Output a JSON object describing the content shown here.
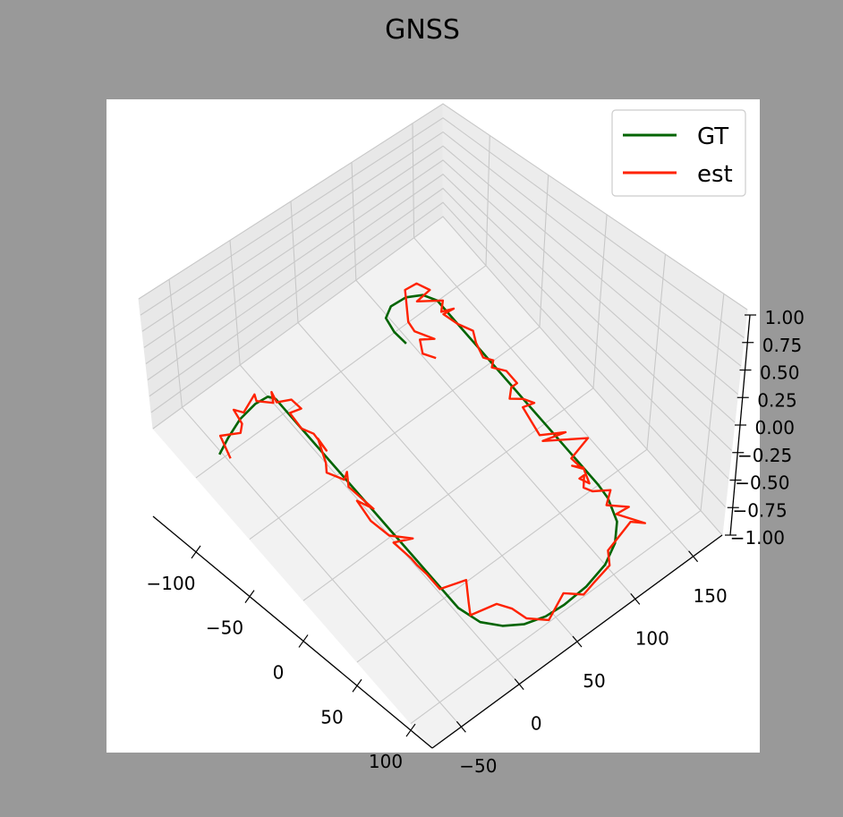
{
  "chart_data": {
    "type": "line",
    "projection": "3d",
    "title": "GNSS",
    "xlabel": "",
    "ylabel": "",
    "zlabel": "",
    "xlim": [
      -140,
      120
    ],
    "ylim": [
      -75,
      175
    ],
    "zlim": [
      -1.0,
      1.0
    ],
    "x_ticks": [
      -100,
      -50,
      0,
      50,
      100
    ],
    "x_tick_labels": [
      "−100",
      "−50",
      "0",
      "50",
      "100"
    ],
    "y_ticks": [
      -50,
      0,
      50,
      100,
      150
    ],
    "y_tick_labels": [
      "−50",
      "0",
      "50",
      "100",
      "150"
    ],
    "z_ticks": [
      1.0,
      0.75,
      0.5,
      0.25,
      0.0,
      -0.25,
      -0.5,
      -0.75,
      -1.0
    ],
    "z_tick_labels": [
      "1.00",
      "0.75",
      "0.50",
      "0.25",
      "0.00",
      "−0.25",
      "−0.50",
      "−0.75",
      "−1.00"
    ],
    "grid": true,
    "legend_position": "top-right",
    "series": [
      {
        "name": "GT",
        "color": "#006400",
        "x": [
          -103,
          -108,
          -113,
          -115,
          -114,
          -110,
          -100,
          -80,
          -60,
          -40,
          -20,
          0,
          20,
          40,
          60,
          75,
          85,
          92,
          96,
          97,
          96,
          92,
          85,
          75,
          60,
          50,
          40,
          30,
          20,
          10,
          0,
          -10,
          -20,
          -30,
          -40,
          -50,
          -60,
          -70,
          -80,
          -90,
          -100,
          -108,
          -113,
          -114,
          -110,
          -100,
          -90
        ],
        "y": [
          -52,
          -40,
          -25,
          -10,
          0,
          3,
          3,
          3,
          3,
          3,
          3,
          3,
          3,
          3,
          3,
          8,
          18,
          30,
          45,
          60,
          80,
          100,
          115,
          126,
          132,
          133,
          133,
          133,
          133,
          133,
          133,
          133,
          133,
          133,
          133,
          133,
          133,
          133,
          133,
          133,
          133,
          128,
          118,
          106,
          98,
          96,
          97
        ],
        "z": [
          0,
          0,
          0,
          0,
          0,
          0,
          0,
          0,
          0,
          0,
          0,
          0,
          0,
          0,
          0,
          0,
          0,
          0,
          0,
          0,
          0,
          0,
          0,
          0,
          0,
          0,
          0,
          0,
          0,
          0,
          0,
          0,
          0,
          0,
          0,
          0,
          0,
          0,
          0,
          0,
          0,
          0,
          0,
          0,
          0,
          0,
          0
        ]
      },
      {
        "name": "est",
        "color": "#ff2200",
        "x": [
          -97,
          -112,
          -106,
          -110,
          -120,
          -115,
          -120,
          -116,
          -109,
          -115,
          -108,
          -104,
          -96,
          -98,
          -86,
          -79,
          -66,
          -75,
          -60,
          -55,
          -45,
          -48,
          -40,
          -20,
          -30,
          -15,
          -1,
          9,
          4,
          18,
          24,
          32,
          44,
          49,
          61,
          68,
          72,
          80,
          90,
          99,
          91,
          99,
          97,
          94,
          86,
          80,
          86,
          71,
          72,
          63,
          57,
          51,
          46,
          41,
          40,
          40,
          46,
          36,
          31,
          36,
          27,
          23,
          8,
          12,
          4,
          -6,
          -16,
          -14,
          -20,
          -25,
          -30,
          -30,
          -40,
          -47,
          -50,
          -55,
          -65,
          -72,
          -81,
          -91,
          -90,
          -93,
          -98,
          -107,
          -108,
          -116,
          -117,
          -113,
          -100,
          -93,
          -82,
          -87,
          -79,
          -72
        ],
        "y": [
          -48,
          -43,
          -31,
          -26,
          -24,
          -20,
          -6,
          -8,
          0,
          4,
          2,
          11,
          12,
          4,
          3,
          7,
          6,
          7,
          0,
          -4,
          2,
          7,
          1,
          4,
          -1,
          -3,
          0,
          11,
          -1,
          1,
          1,
          2,
          2,
          20,
          11,
          6,
          25,
          31,
          34,
          45,
          65,
          75,
          85,
          102,
          108,
          133,
          140,
          129,
          139,
          128,
          137,
          127,
          124,
          129,
          130,
          126,
          129,
          133,
          128,
          132,
          131,
          149,
          124,
          140,
          125,
          127,
          129,
          137,
          133,
          126,
          132,
          137,
          137,
          131,
          135,
          131,
          134,
          138,
          133,
          130,
          138,
          130,
          136,
          122,
          134,
          130,
          121,
          118,
          108,
          107,
          114,
          106,
          101,
          106
        ],
        "z": [
          0,
          0,
          0,
          0,
          0,
          0,
          0,
          0,
          0,
          0,
          0,
          0,
          0,
          0,
          0,
          0,
          0,
          0,
          0,
          0,
          0,
          0,
          0,
          0,
          0,
          0,
          0,
          0,
          0,
          0,
          0,
          0,
          0,
          0,
          0,
          0,
          0,
          0,
          0,
          0,
          0,
          0,
          0,
          0,
          0,
          0,
          0,
          0,
          0,
          0,
          0,
          0,
          0,
          0,
          0,
          0,
          0,
          0,
          0,
          0,
          0,
          0,
          0,
          0,
          0,
          0,
          0,
          0,
          0,
          0,
          0,
          0,
          0,
          0,
          0,
          0,
          0,
          0,
          0,
          0,
          0,
          0,
          0,
          0,
          0,
          0,
          0,
          0,
          0,
          0,
          0,
          0,
          0,
          0
        ]
      }
    ]
  }
}
